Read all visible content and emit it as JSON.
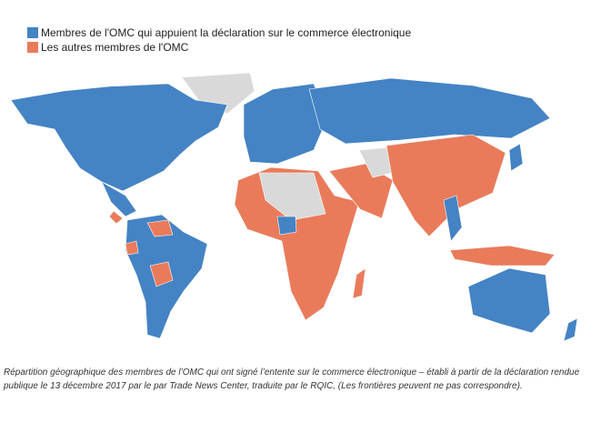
{
  "legend": {
    "items": [
      {
        "label": "Membres de l'OMC qui appuient la déclaration sur le commerce électronique",
        "color": "#4483c4"
      },
      {
        "label": "Les autres membres de l'OMC",
        "color": "#e97b5b"
      }
    ]
  },
  "caption": "Répartition géographique des membres de l’OMC qui ont signé l’entente sur le commerce électronique – établi à partir de la déclaration rendue publique le 13 décembre 2017 par le par Trade News Center, traduite par le RQIC, (Les frontières peuvent ne pas correspondre)."
}
